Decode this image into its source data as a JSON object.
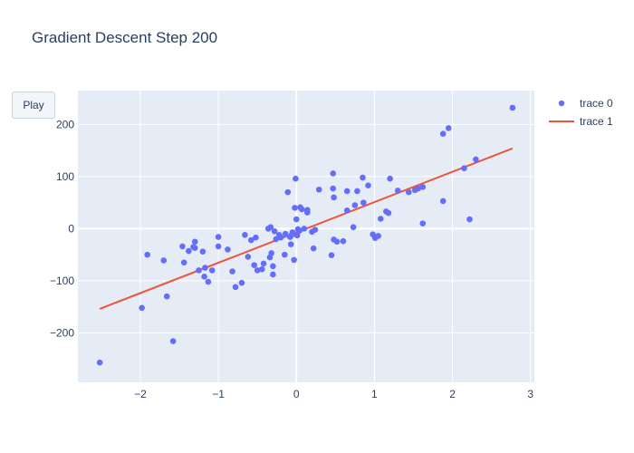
{
  "title": "Gradient Descent Step 200",
  "controls": {
    "play_label": "Play"
  },
  "colors": {
    "plot_bg": "#e5ecf6",
    "grid": "#ffffff",
    "scatter": "#636efa",
    "line": "#ef553b",
    "text": "#2a3f5f"
  },
  "chart_data": {
    "type": "scatter",
    "title": "Gradient Descent Step 200",
    "xlabel": "",
    "ylabel": "",
    "xlim": [
      -2.8,
      3.05
    ],
    "ylim": [
      -295,
      265
    ],
    "xticks": [
      -2,
      -1,
      0,
      1,
      2,
      3
    ],
    "xtick_labels": [
      "−2",
      "−1",
      "0",
      "1",
      "2",
      "3"
    ],
    "yticks": [
      -200,
      -100,
      0,
      100,
      200
    ],
    "ytick_labels": [
      "−200",
      "−100",
      "0",
      "100",
      "200"
    ],
    "grid": true,
    "legend": {
      "placement": "top-right",
      "entries": [
        "trace 0",
        "trace 1"
      ]
    },
    "series": [
      {
        "name": "trace 0",
        "mode": "markers",
        "x": [
          2.77,
          1.95,
          1.88,
          2.3,
          2.15,
          1.62,
          1.56,
          1.52,
          1.44,
          1.3,
          1.2,
          1.15,
          1.18,
          1.08,
          0.98,
          1.01,
          1.05,
          0.92,
          0.85,
          0.86,
          0.78,
          0.75,
          0.65,
          0.65,
          0.6,
          0.52,
          0.48,
          0.48,
          0.47,
          0.47,
          0.45,
          0.29,
          0.22,
          0.2,
          0.14,
          0.14,
          0.1,
          0.07,
          0.05,
          0.04,
          0.02,
          0.01,
          0.0,
          -0.01,
          -0.03,
          -0.05,
          -0.07,
          -0.11,
          -0.15,
          -0.2,
          -0.22,
          -0.26,
          -0.3,
          -0.32,
          -0.36,
          -0.42,
          -0.44,
          -0.5,
          -0.52,
          -0.58,
          -0.62,
          -0.66,
          -0.7,
          -0.78,
          -0.82,
          -0.88,
          -1.0,
          -1.0,
          -1.08,
          -1.13,
          -1.17,
          -1.18,
          -1.2,
          -1.25,
          -1.3,
          -1.3,
          -1.32,
          -1.38,
          -1.44,
          -1.46,
          -1.58,
          -1.66,
          -1.7,
          -1.91,
          -1.98,
          -2.52,
          2.22,
          1.88,
          1.62,
          -0.02,
          0.24,
          -0.33,
          -0.34,
          -0.3,
          -0.28,
          -0.54,
          -0.14,
          -0.06,
          -0.08,
          0.73
        ],
        "y": [
          232,
          193,
          182,
          133,
          116,
          80,
          77,
          74,
          70,
          73,
          96,
          33,
          30,
          19,
          -11,
          -18,
          -14,
          83,
          98,
          50,
          72,
          45,
          72,
          35,
          -24,
          -25,
          -21,
          60,
          77,
          106,
          -51,
          75,
          -38,
          -6,
          31,
          36,
          0,
          37,
          41,
          -4,
          -1,
          -13,
          18,
          96,
          -60,
          -7,
          -30,
          70,
          -50,
          -17,
          -12,
          -20,
          -88,
          -47,
          0,
          -67,
          -78,
          -80,
          -17,
          -22,
          -54,
          -12,
          -104,
          -112,
          -82,
          -40,
          -34,
          -16,
          -80,
          -102,
          -75,
          -92,
          -44,
          -80,
          -37,
          -25,
          -35,
          -43,
          -65,
          -34,
          -216,
          -130,
          -61,
          -50,
          -152,
          -257,
          18,
          53,
          10,
          40,
          -2,
          3,
          -55,
          -72,
          -5,
          -70,
          -10,
          -12,
          -16,
          3
        ]
      },
      {
        "name": "trace 1",
        "mode": "lines",
        "x": [
          -2.52,
          2.77
        ],
        "y": [
          -154,
          154
        ]
      }
    ]
  }
}
